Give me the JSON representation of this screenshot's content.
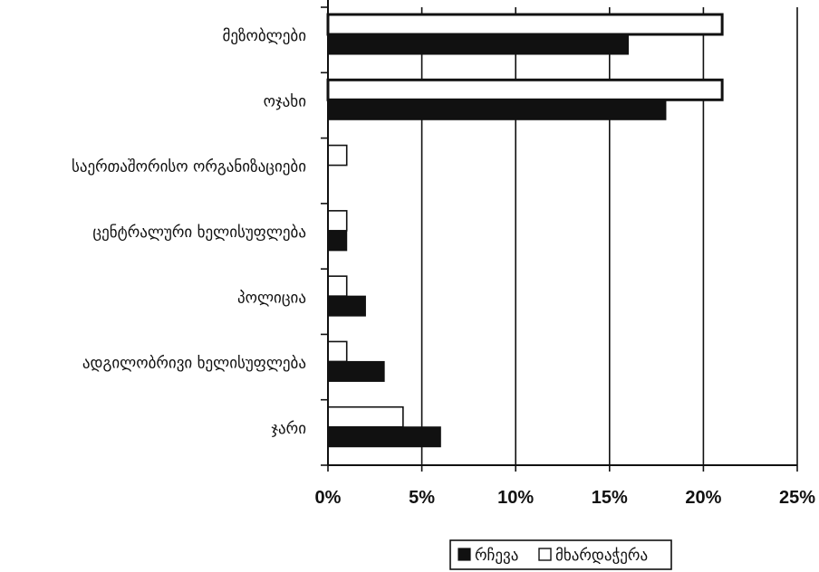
{
  "chart_data": {
    "type": "bar",
    "orientation": "horizontal",
    "categories": [
      "მეზობლები",
      "ოჯახი",
      "საერთაშორისო ორგანიზაციები",
      "ცენტრალური ხელისუფლება",
      "პოლიცია",
      "ადგილობრივი ხელისუფლება",
      "ჯარი"
    ],
    "series": [
      {
        "name": "რჩევა",
        "values": [
          16,
          18,
          0,
          1,
          2,
          3,
          6
        ]
      },
      {
        "name": "მხარდაჭერა",
        "values": [
          21,
          21,
          1,
          1,
          1,
          1,
          4
        ]
      }
    ],
    "xlim": [
      0,
      25
    ],
    "xticks": [
      0,
      5,
      10,
      15,
      20,
      25
    ],
    "xtick_labels": [
      "0%",
      "5%",
      "10%",
      "15%",
      "20%",
      "25%"
    ],
    "grid": "vertical",
    "legend_position": "bottom-right",
    "colors": {
      "რჩევა": "#111111",
      "მხარდაჭერა": "#ffffff",
      "stroke": "#111111"
    }
  }
}
